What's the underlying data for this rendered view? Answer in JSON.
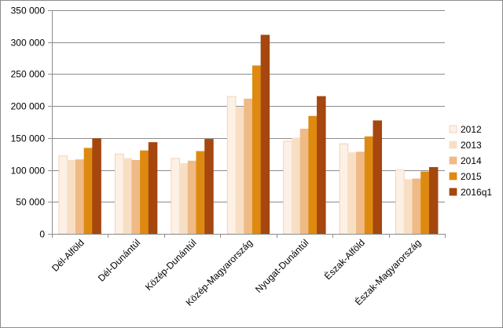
{
  "chart_data": {
    "type": "bar",
    "title": "",
    "xlabel": "",
    "ylabel": "",
    "ylim": [
      0,
      350000
    ],
    "yticks": [
      0,
      50000,
      100000,
      150000,
      200000,
      250000,
      300000,
      350000
    ],
    "ytick_labels": [
      "0",
      "50 000",
      "100 000",
      "150 000",
      "200 000",
      "250 000",
      "300 000",
      "350 000"
    ],
    "grid": true,
    "legend_position": "right",
    "categories": [
      "Dél-Alföld",
      "Dél-Dunántúl",
      "Közép-Dunántúl",
      "Közép-Magyarország",
      "Nyugat-Dunántúl",
      "Észak-Alföld",
      "Észak-Magyarország"
    ],
    "series": [
      {
        "name": "2012",
        "color": "#fdf1e6",
        "stroke": "#f2c9a6",
        "values": [
          122000,
          125000,
          118000,
          215000,
          145000,
          141000,
          100000
        ]
      },
      {
        "name": "2013",
        "color": "#f8dfc4",
        "stroke": "#f8dfc4",
        "values": [
          115000,
          118000,
          110000,
          198000,
          150000,
          127000,
          85000
        ]
      },
      {
        "name": "2014",
        "color": "#efba86",
        "stroke": "#efba86",
        "values": [
          116000,
          115000,
          114000,
          211000,
          164000,
          128000,
          86000
        ]
      },
      {
        "name": "2015",
        "color": "#de8a10",
        "stroke": "#de8a10",
        "values": [
          134000,
          130000,
          129000,
          263000,
          184000,
          152000,
          97000
        ]
      },
      {
        "name": "2016q1",
        "color": "#a5470e",
        "stroke": "#a5470e",
        "values": [
          149000,
          143000,
          148000,
          311000,
          215000,
          177000,
          104000
        ]
      }
    ]
  }
}
